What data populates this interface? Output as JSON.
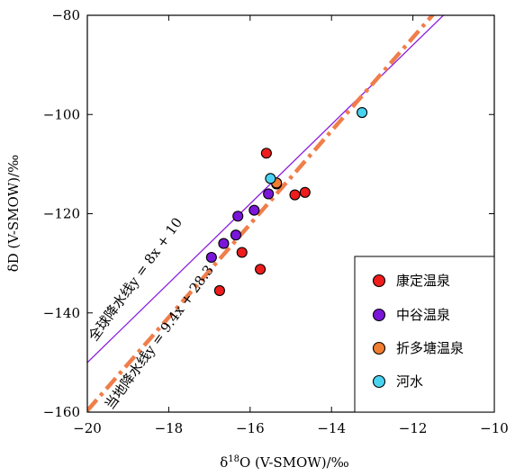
{
  "chart_data": {
    "type": "scatter",
    "xlim": [
      -20,
      -10
    ],
    "ylim": [
      -160,
      -80
    ],
    "x_ticks": [
      "−20",
      "−18",
      "−16",
      "−14",
      "−12",
      "−10"
    ],
    "y_ticks": [
      "−80",
      "−100",
      "−120",
      "−140",
      "−160"
    ],
    "x_tick_values": [
      -20,
      -18,
      -16,
      -14,
      -12,
      -10
    ],
    "y_tick_values": [
      -80,
      -100,
      -120,
      -140,
      -160
    ],
    "xlabel_prefix": "δ",
    "xlabel_sup": "18",
    "xlabel_rest": "O (V-SMOW)/‰",
    "ylabel": "δD (V-SMOW)/‰",
    "series": [
      {
        "name": "康定温泉",
        "color": "#ee1c1c",
        "points": [
          [
            -15.6,
            -107.8
          ],
          [
            -14.9,
            -116.2
          ],
          [
            -14.65,
            -115.7
          ],
          [
            -16.2,
            -127.8
          ],
          [
            -15.75,
            -131.2
          ],
          [
            -16.75,
            -135.5
          ],
          [
            -15.35,
            -114.0
          ]
        ]
      },
      {
        "name": "中谷温泉",
        "color": "#7a16d8",
        "points": [
          [
            -16.3,
            -120.5
          ],
          [
            -15.9,
            -119.3
          ],
          [
            -15.55,
            -116.0
          ],
          [
            -16.35,
            -124.3
          ],
          [
            -16.65,
            -126.0
          ],
          [
            -16.95,
            -128.8
          ]
        ]
      },
      {
        "name": "折多塘温泉",
        "color": "#f07d32",
        "points": [
          [
            -15.35,
            -113.8
          ]
        ]
      },
      {
        "name": "河水",
        "color": "#4ad3f0",
        "points": [
          [
            -15.5,
            -112.9
          ],
          [
            -13.25,
            -99.6
          ]
        ]
      }
    ],
    "lines": [
      {
        "label": "全球降水线y = 8x + 10",
        "slope": 8,
        "intercept": 10,
        "color": "#8b1fe0",
        "style": "solid"
      },
      {
        "label": "当地降水线y = 9.4x + 28.3",
        "slope": 9.4,
        "intercept": 28.3,
        "color": "#f07d4a",
        "style": "dashdot"
      }
    ],
    "legend_position": "bottom-right",
    "grid": false
  }
}
